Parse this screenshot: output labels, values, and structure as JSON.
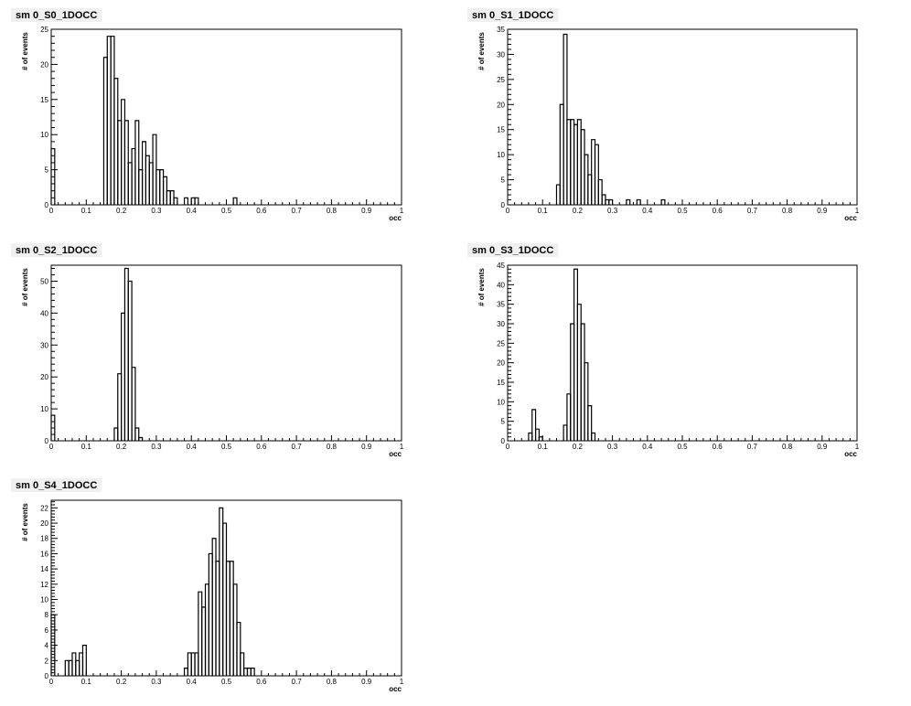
{
  "chart_data": [
    {
      "type": "bar",
      "title": "sm 0_S0_1DOCC",
      "xlabel": "occ",
      "ylabel": "# of events",
      "xlim": [
        0,
        1
      ],
      "ylim": [
        0,
        25
      ],
      "yticks": [
        0,
        5,
        10,
        15,
        20,
        25
      ],
      "bin_width": 0.01,
      "bins": [
        [
          0.0,
          8
        ],
        [
          0.15,
          21
        ],
        [
          0.16,
          24
        ],
        [
          0.17,
          24
        ],
        [
          0.18,
          18
        ],
        [
          0.19,
          12
        ],
        [
          0.2,
          15
        ],
        [
          0.21,
          12
        ],
        [
          0.22,
          6
        ],
        [
          0.23,
          8
        ],
        [
          0.24,
          12
        ],
        [
          0.25,
          5
        ],
        [
          0.26,
          9
        ],
        [
          0.27,
          7
        ],
        [
          0.28,
          6
        ],
        [
          0.29,
          10
        ],
        [
          0.3,
          5
        ],
        [
          0.31,
          5
        ],
        [
          0.32,
          4
        ],
        [
          0.33,
          2
        ],
        [
          0.34,
          2
        ],
        [
          0.35,
          1
        ],
        [
          0.38,
          1
        ],
        [
          0.4,
          1
        ],
        [
          0.41,
          1
        ],
        [
          0.52,
          1
        ]
      ]
    },
    {
      "type": "bar",
      "title": "sm 0_S1_1DOCC",
      "xlabel": "occ",
      "ylabel": "# of events",
      "xlim": [
        0,
        1
      ],
      "ylim": [
        0,
        35
      ],
      "yticks": [
        0,
        5,
        10,
        15,
        20,
        25,
        30,
        35
      ],
      "bin_width": 0.01,
      "bins": [
        [
          0.14,
          4
        ],
        [
          0.15,
          20
        ],
        [
          0.16,
          34
        ],
        [
          0.17,
          17
        ],
        [
          0.18,
          17
        ],
        [
          0.19,
          16
        ],
        [
          0.2,
          17
        ],
        [
          0.21,
          15
        ],
        [
          0.22,
          10
        ],
        [
          0.23,
          6
        ],
        [
          0.24,
          13
        ],
        [
          0.25,
          12
        ],
        [
          0.26,
          5
        ],
        [
          0.27,
          2
        ],
        [
          0.28,
          1
        ],
        [
          0.29,
          1
        ],
        [
          0.34,
          1
        ],
        [
          0.37,
          1
        ],
        [
          0.44,
          1
        ]
      ]
    },
    {
      "type": "bar",
      "title": "sm 0_S2_1DOCC",
      "xlabel": "occ",
      "ylabel": "# of events",
      "xlim": [
        0,
        1
      ],
      "ylim": [
        0,
        55
      ],
      "yticks": [
        0,
        10,
        20,
        30,
        40,
        50
      ],
      "bin_width": 0.01,
      "bins": [
        [
          0.0,
          8
        ],
        [
          0.18,
          4
        ],
        [
          0.19,
          21
        ],
        [
          0.2,
          40
        ],
        [
          0.21,
          54
        ],
        [
          0.22,
          50
        ],
        [
          0.23,
          23
        ],
        [
          0.24,
          4
        ],
        [
          0.25,
          1
        ]
      ]
    },
    {
      "type": "bar",
      "title": "sm 0_S3_1DOCC",
      "xlabel": "occ",
      "ylabel": "# of events",
      "xlim": [
        0,
        1
      ],
      "ylim": [
        0,
        45
      ],
      "yticks": [
        0,
        5,
        10,
        15,
        20,
        25,
        30,
        35,
        40,
        45
      ],
      "bin_width": 0.01,
      "bins": [
        [
          0.06,
          2
        ],
        [
          0.07,
          8
        ],
        [
          0.08,
          3
        ],
        [
          0.09,
          1
        ],
        [
          0.16,
          4
        ],
        [
          0.17,
          12
        ],
        [
          0.18,
          30
        ],
        [
          0.19,
          44
        ],
        [
          0.2,
          35
        ],
        [
          0.21,
          30
        ],
        [
          0.22,
          20
        ],
        [
          0.23,
          9
        ],
        [
          0.24,
          2
        ]
      ]
    },
    {
      "type": "bar",
      "title": "sm 0_S4_1DOCC",
      "xlabel": "occ",
      "ylabel": "# of events",
      "xlim": [
        0,
        1
      ],
      "ylim": [
        0,
        23
      ],
      "yticks": [
        0,
        2,
        4,
        6,
        8,
        10,
        12,
        14,
        16,
        18,
        20,
        22
      ],
      "bin_width": 0.01,
      "bins": [
        [
          0.0,
          8
        ],
        [
          0.04,
          2
        ],
        [
          0.05,
          2
        ],
        [
          0.06,
          3
        ],
        [
          0.07,
          2
        ],
        [
          0.08,
          3
        ],
        [
          0.09,
          4
        ],
        [
          0.38,
          1
        ],
        [
          0.39,
          3
        ],
        [
          0.4,
          3
        ],
        [
          0.41,
          3
        ],
        [
          0.42,
          11
        ],
        [
          0.43,
          9
        ],
        [
          0.44,
          12
        ],
        [
          0.45,
          16
        ],
        [
          0.46,
          18
        ],
        [
          0.47,
          15
        ],
        [
          0.48,
          22
        ],
        [
          0.49,
          20
        ],
        [
          0.5,
          15
        ],
        [
          0.51,
          15
        ],
        [
          0.52,
          12
        ],
        [
          0.53,
          7
        ],
        [
          0.54,
          3
        ],
        [
          0.55,
          1
        ],
        [
          0.56,
          1
        ],
        [
          0.57,
          1
        ]
      ]
    }
  ]
}
